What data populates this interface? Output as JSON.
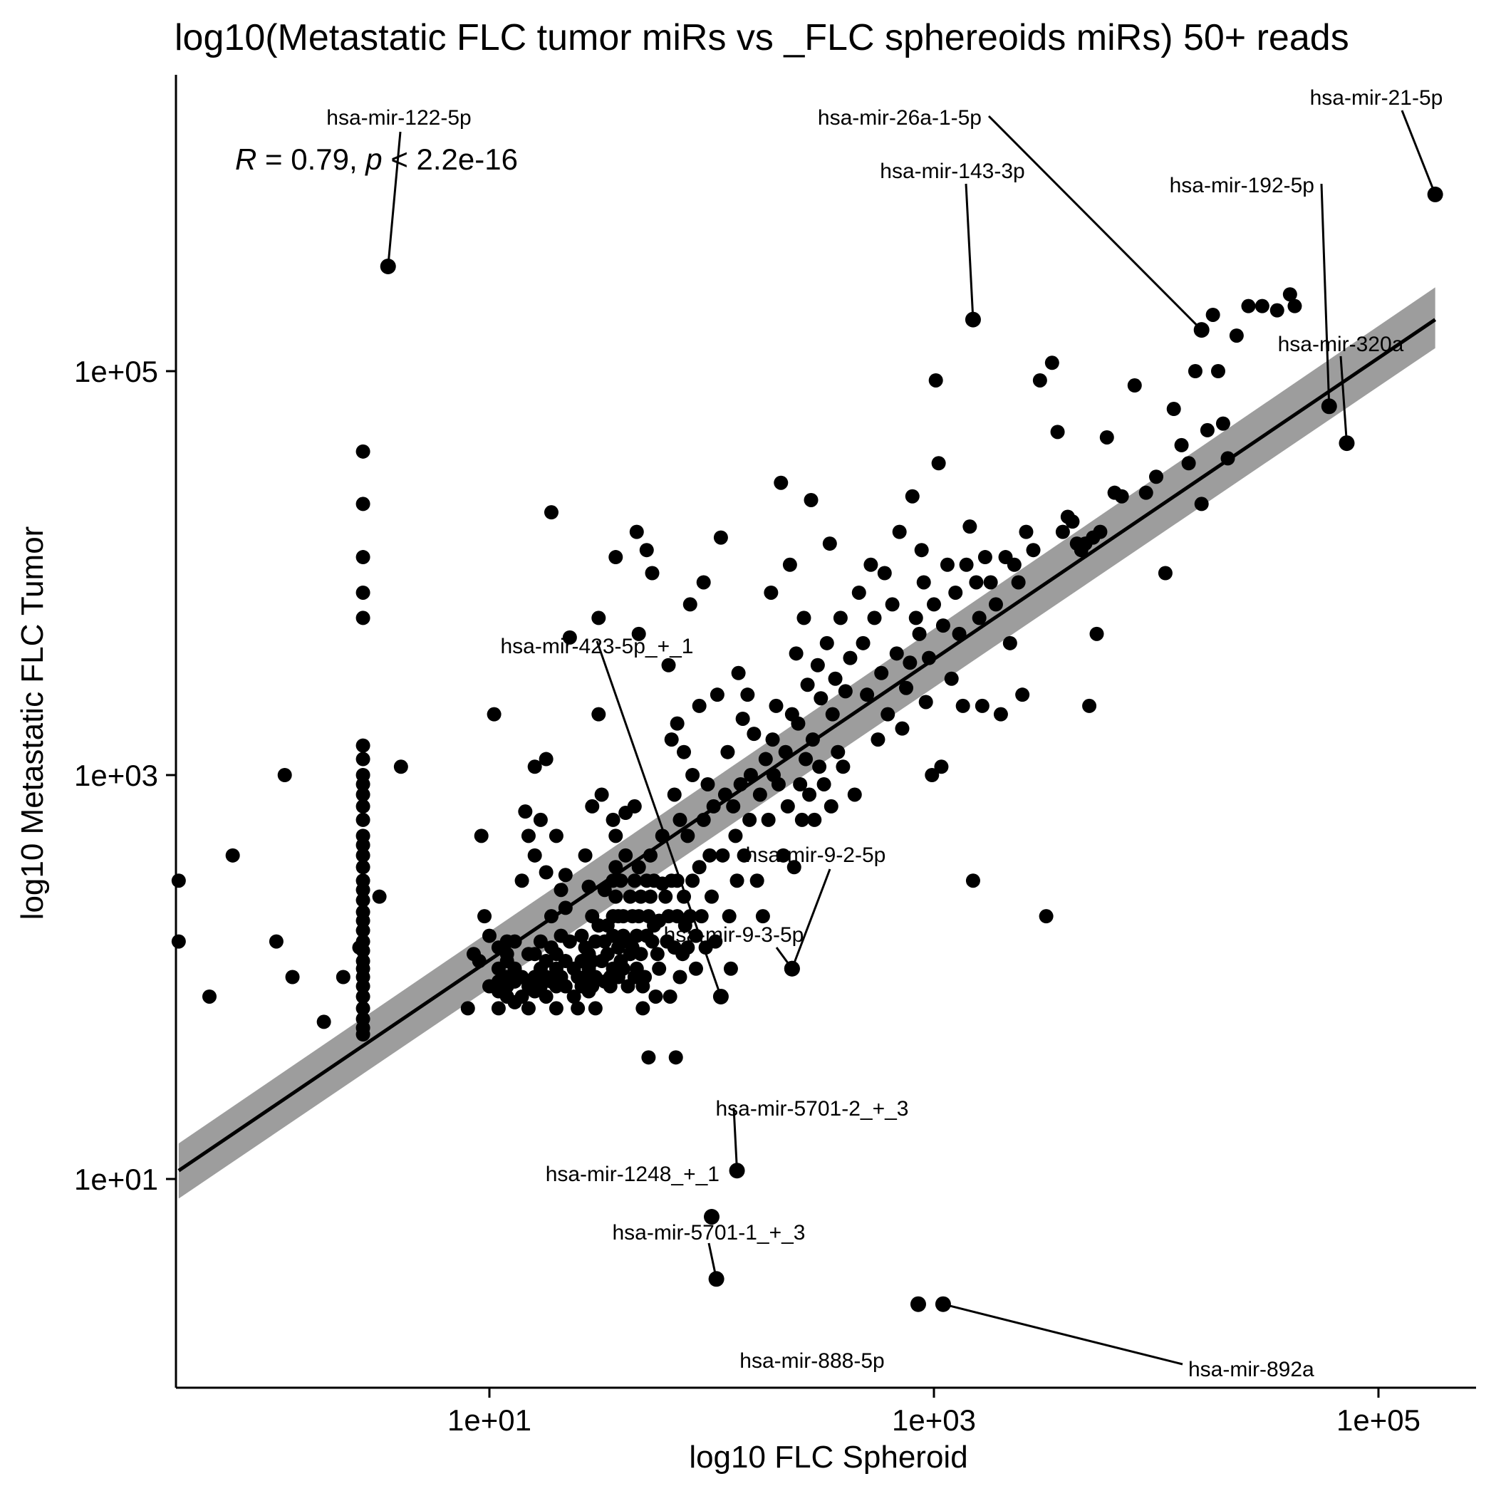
{
  "chart_data": {
    "type": "scatter",
    "title": "log10(Metastatic FLC tumor miRs vs _FLC sphereoids miRs) 50+ reads",
    "xlabel": "log10 FLC Spheroid",
    "ylabel": "log10 Metastatic FLC Tumor",
    "x_scale": "log10",
    "y_scale": "log10",
    "xlim": [
      0.2,
      300000
    ],
    "ylim": [
      2.2,
      1500000
    ],
    "x_ticks": [
      {
        "value": 10,
        "label": "1e+01"
      },
      {
        "value": 1000,
        "label": "1e+03"
      },
      {
        "value": 100000,
        "label": "1e+05"
      }
    ],
    "y_ticks": [
      {
        "value": 10,
        "label": "1e+01"
      },
      {
        "value": 1000,
        "label": "1e+03"
      },
      {
        "value": 100000,
        "label": "1e+05"
      }
    ],
    "grid": false,
    "stat_annotation": {
      "r_symbol": "R",
      "r_text": " = 0.79, ",
      "p_symbol": "p",
      "p_text": " < 2.2e-16"
    },
    "fit": {
      "type": "linear regression (log-log) with confidence band",
      "x_start": 0.4,
      "y_start": 11,
      "x_end": 180000,
      "y_end": 180000,
      "band_start": [
        8,
        15
      ],
      "band_end": [
        130000,
        260000
      ]
    },
    "labeled_points": [
      {
        "label": "hsa-mir-122-5p",
        "x": 3.5,
        "y": 330000
      },
      {
        "label": "hsa-mir-26a-1-5p",
        "x": 16000,
        "y": 160000
      },
      {
        "label": "hsa-mir-21-5p",
        "x": 180000,
        "y": 750000
      },
      {
        "label": "hsa-mir-143-3p",
        "x": 1500,
        "y": 180000
      },
      {
        "label": "hsa-mir-192-5p",
        "x": 60000,
        "y": 67000
      },
      {
        "label": "hsa-mir-320a",
        "x": 72000,
        "y": 44000
      },
      {
        "label": "hsa-mir-423-5p_+_1",
        "x": 110,
        "y": 80
      },
      {
        "label": "hsa-mir-9-2-5p",
        "x": 230,
        "y": 110
      },
      {
        "label": "hsa-mir-9-3-5p",
        "x": 230,
        "y": 110
      },
      {
        "label": "hsa-mir-5701-2_+_3",
        "x": 130,
        "y": 11
      },
      {
        "label": "hsa-mir-1248_+_1",
        "x": 100,
        "y": 6.5
      },
      {
        "label": "hsa-mir-5701-1_+_3",
        "x": 105,
        "y": 3.2
      },
      {
        "label": "hsa-mir-888-5p",
        "x": 850,
        "y": 2.4
      },
      {
        "label": "hsa-mir-892a",
        "x": 1100,
        "y": 2.4
      }
    ],
    "points": [
      [
        2.7,
        1000
      ],
      [
        2.7,
        1200
      ],
      [
        2.7,
        1400
      ],
      [
        2.7,
        6000
      ],
      [
        2.7,
        8000
      ],
      [
        2.7,
        12000
      ],
      [
        2.7,
        22000
      ],
      [
        2.7,
        40000
      ],
      [
        2.7,
        900
      ],
      [
        2.7,
        800
      ],
      [
        2.7,
        700
      ],
      [
        2.7,
        600
      ],
      [
        2.7,
        500
      ],
      [
        2.7,
        450
      ],
      [
        2.7,
        400
      ],
      [
        2.7,
        350
      ],
      [
        2.7,
        300
      ],
      [
        2.7,
        270
      ],
      [
        2.7,
        240
      ],
      [
        2.7,
        210
      ],
      [
        2.7,
        190
      ],
      [
        2.7,
        170
      ],
      [
        2.7,
        150
      ],
      [
        2.7,
        135
      ],
      [
        2.7,
        120
      ],
      [
        2.7,
        110
      ],
      [
        2.7,
        100
      ],
      [
        2.7,
        90
      ],
      [
        2.7,
        80
      ],
      [
        2.7,
        70
      ],
      [
        2.7,
        62
      ],
      [
        2.7,
        56
      ],
      [
        2.7,
        52
      ],
      [
        0.4,
        300
      ],
      [
        0.4,
        150
      ],
      [
        0.55,
        80
      ],
      [
        0.7,
        400
      ],
      [
        1.1,
        150
      ],
      [
        1.2,
        1000
      ],
      [
        1.3,
        100
      ],
      [
        1.8,
        60
      ],
      [
        2.2,
        100
      ],
      [
        2.6,
        140
      ],
      [
        3.2,
        250
      ],
      [
        4.0,
        1100
      ],
      [
        8,
        70
      ],
      [
        8.5,
        130
      ],
      [
        9,
        120
      ],
      [
        9.2,
        500
      ],
      [
        9.5,
        200
      ],
      [
        10,
        160
      ],
      [
        10,
        90
      ],
      [
        10.5,
        2000
      ],
      [
        11,
        140
      ],
      [
        11,
        110
      ],
      [
        11,
        95
      ],
      [
        11,
        85
      ],
      [
        11,
        70
      ],
      [
        12,
        150
      ],
      [
        12,
        130
      ],
      [
        12,
        120
      ],
      [
        12,
        100
      ],
      [
        12,
        90
      ],
      [
        12,
        80
      ],
      [
        13,
        150
      ],
      [
        13,
        110
      ],
      [
        13,
        95
      ],
      [
        13,
        75
      ],
      [
        14,
        300
      ],
      [
        14,
        100
      ],
      [
        14,
        80
      ],
      [
        14.5,
        660
      ],
      [
        15,
        500
      ],
      [
        15,
        130
      ],
      [
        15,
        90
      ],
      [
        15,
        70
      ],
      [
        16,
        1100
      ],
      [
        16,
        400
      ],
      [
        16,
        130
      ],
      [
        16,
        100
      ],
      [
        16,
        85
      ],
      [
        17,
        600
      ],
      [
        17,
        150
      ],
      [
        17,
        110
      ],
      [
        17,
        90
      ],
      [
        18,
        1200
      ],
      [
        18,
        330
      ],
      [
        18,
        120
      ],
      [
        18,
        100
      ],
      [
        18,
        80
      ],
      [
        19,
        20000
      ],
      [
        19,
        200
      ],
      [
        19,
        140
      ],
      [
        19,
        95
      ],
      [
        20,
        500
      ],
      [
        20,
        130
      ],
      [
        20,
        110
      ],
      [
        20,
        90
      ],
      [
        20,
        70
      ],
      [
        21,
        270
      ],
      [
        21,
        160
      ],
      [
        21,
        100
      ],
      [
        22,
        320
      ],
      [
        22,
        220
      ],
      [
        22,
        120
      ],
      [
        22,
        90
      ],
      [
        23,
        4800
      ],
      [
        23,
        150
      ],
      [
        24,
        110
      ],
      [
        24,
        80
      ],
      [
        25,
        100
      ],
      [
        25,
        70
      ],
      [
        26,
        160
      ],
      [
        26,
        120
      ],
      [
        26,
        90
      ],
      [
        27,
        400
      ],
      [
        27,
        140
      ],
      [
        27,
        100
      ],
      [
        28,
        280
      ],
      [
        28,
        130
      ],
      [
        28,
        110
      ],
      [
        28,
        85
      ],
      [
        29,
        700
      ],
      [
        29,
        200
      ],
      [
        29,
        120
      ],
      [
        29,
        90
      ],
      [
        30,
        150
      ],
      [
        30,
        100
      ],
      [
        30,
        70
      ],
      [
        31,
        6000
      ],
      [
        31,
        2000
      ],
      [
        31,
        180
      ],
      [
        32,
        800
      ],
      [
        32,
        120
      ],
      [
        33,
        270
      ],
      [
        33,
        150
      ],
      [
        33,
        95
      ],
      [
        34,
        180
      ],
      [
        34,
        130
      ],
      [
        35,
        100
      ],
      [
        35,
        90
      ],
      [
        36,
        600
      ],
      [
        36,
        300
      ],
      [
        36,
        200
      ],
      [
        36,
        160
      ],
      [
        36,
        110
      ],
      [
        37,
        12000
      ],
      [
        37,
        500
      ],
      [
        37,
        350
      ],
      [
        37,
        250
      ],
      [
        38,
        200
      ],
      [
        38,
        140
      ],
      [
        38,
        100
      ],
      [
        39,
        300
      ],
      [
        39,
        120
      ],
      [
        40,
        200
      ],
      [
        40,
        160
      ],
      [
        40,
        110
      ],
      [
        41,
        650
      ],
      [
        41,
        400
      ],
      [
        42,
        150
      ],
      [
        42,
        90
      ],
      [
        43,
        250
      ],
      [
        43,
        130
      ],
      [
        44,
        200
      ],
      [
        44,
        140
      ],
      [
        45,
        700
      ],
      [
        45,
        300
      ],
      [
        45,
        100
      ],
      [
        46,
        16000
      ],
      [
        46,
        160
      ],
      [
        46,
        110
      ],
      [
        47,
        5000
      ],
      [
        47,
        350
      ],
      [
        47,
        200
      ],
      [
        48,
        250
      ],
      [
        48,
        130
      ],
      [
        49,
        90
      ],
      [
        49,
        70
      ],
      [
        50,
        100
      ],
      [
        51,
        13000
      ],
      [
        51,
        300
      ],
      [
        51,
        160
      ],
      [
        52,
        40
      ],
      [
        52,
        200
      ],
      [
        53,
        400
      ],
      [
        53,
        250
      ],
      [
        54,
        10000
      ],
      [
        54,
        150
      ],
      [
        55,
        300
      ],
      [
        55,
        180
      ],
      [
        56,
        80
      ],
      [
        57,
        130
      ],
      [
        58,
        190
      ],
      [
        58,
        110
      ],
      [
        60,
        500
      ],
      [
        60,
        290
      ],
      [
        62,
        250
      ],
      [
        63,
        150
      ],
      [
        64,
        3500
      ],
      [
        64,
        200
      ],
      [
        65,
        80
      ],
      [
        66,
        1500
      ],
      [
        66,
        300
      ],
      [
        68,
        800
      ],
      [
        68,
        140
      ],
      [
        69,
        40
      ],
      [
        70,
        1800
      ],
      [
        70,
        300
      ],
      [
        70,
        200
      ],
      [
        72,
        600
      ],
      [
        72,
        100
      ],
      [
        74,
        130
      ],
      [
        75,
        1300
      ],
      [
        75,
        250
      ],
      [
        76,
        180
      ],
      [
        78,
        500
      ],
      [
        78,
        140
      ],
      [
        80,
        7000
      ],
      [
        80,
        200
      ],
      [
        82,
        1000
      ],
      [
        82,
        300
      ],
      [
        85,
        110
      ],
      [
        85,
        160
      ],
      [
        88,
        2200
      ],
      [
        88,
        350
      ],
      [
        90,
        200
      ],
      [
        92,
        9000
      ],
      [
        92,
        600
      ],
      [
        94,
        140
      ],
      [
        96,
        900
      ],
      [
        98,
        400
      ],
      [
        100,
        250
      ],
      [
        102,
        700
      ],
      [
        104,
        150
      ],
      [
        106,
        2500
      ],
      [
        110,
        80
      ],
      [
        110,
        15000
      ],
      [
        112,
        400
      ],
      [
        115,
        800
      ],
      [
        118,
        1300
      ],
      [
        120,
        200
      ],
      [
        122,
        110
      ],
      [
        125,
        700
      ],
      [
        128,
        500
      ],
      [
        130,
        300
      ],
      [
        132,
        3200
      ],
      [
        135,
        900
      ],
      [
        138,
        1900
      ],
      [
        140,
        400
      ],
      [
        145,
        2500
      ],
      [
        148,
        600
      ],
      [
        150,
        1000
      ],
      [
        155,
        1600
      ],
      [
        160,
        300
      ],
      [
        165,
        800
      ],
      [
        170,
        200
      ],
      [
        175,
        1200
      ],
      [
        180,
        600
      ],
      [
        185,
        8000
      ],
      [
        188,
        1500
      ],
      [
        190,
        1000
      ],
      [
        195,
        2200
      ],
      [
        200,
        900
      ],
      [
        205,
        28000
      ],
      [
        210,
        400
      ],
      [
        215,
        1300
      ],
      [
        220,
        700
      ],
      [
        225,
        11000
      ],
      [
        230,
        2000
      ],
      [
        235,
        350
      ],
      [
        240,
        4000
      ],
      [
        245,
        1800
      ],
      [
        250,
        900
      ],
      [
        255,
        600
      ],
      [
        260,
        6000
      ],
      [
        265,
        1200
      ],
      [
        270,
        2800
      ],
      [
        275,
        800
      ],
      [
        280,
        23000
      ],
      [
        285,
        1500
      ],
      [
        290,
        600
      ],
      [
        300,
        3500
      ],
      [
        305,
        1100
      ],
      [
        310,
        2400
      ],
      [
        320,
        900
      ],
      [
        330,
        4500
      ],
      [
        340,
        14000
      ],
      [
        345,
        700
      ],
      [
        350,
        2000
      ],
      [
        360,
        3000
      ],
      [
        370,
        1300
      ],
      [
        380,
        6000
      ],
      [
        390,
        1100
      ],
      [
        400,
        2600
      ],
      [
        420,
        3800
      ],
      [
        440,
        800
      ],
      [
        460,
        8000
      ],
      [
        480,
        4500
      ],
      [
        500,
        2500
      ],
      [
        520,
        11000
      ],
      [
        540,
        6000
      ],
      [
        560,
        1500
      ],
      [
        580,
        3200
      ],
      [
        600,
        10000
      ],
      [
        620,
        2000
      ],
      [
        650,
        7000
      ],
      [
        680,
        4000
      ],
      [
        700,
        16000
      ],
      [
        720,
        1700
      ],
      [
        750,
        2700
      ],
      [
        780,
        3600
      ],
      [
        800,
        24000
      ],
      [
        830,
        6000
      ],
      [
        860,
        5000
      ],
      [
        880,
        13000
      ],
      [
        900,
        9000
      ],
      [
        920,
        2300
      ],
      [
        950,
        3800
      ],
      [
        980,
        1000
      ],
      [
        1000,
        7000
      ],
      [
        1020,
        90000
      ],
      [
        1050,
        35000
      ],
      [
        1080,
        1100
      ],
      [
        1100,
        5500
      ],
      [
        1150,
        11000
      ],
      [
        1200,
        3000
      ],
      [
        1250,
        8000
      ],
      [
        1300,
        5000
      ],
      [
        1350,
        2200
      ],
      [
        1400,
        11000
      ],
      [
        1450,
        17000
      ],
      [
        1500,
        300
      ],
      [
        1550,
        9000
      ],
      [
        1600,
        6000
      ],
      [
        1650,
        2200
      ],
      [
        1700,
        12000
      ],
      [
        1800,
        9000
      ],
      [
        1900,
        7000
      ],
      [
        2000,
        2000
      ],
      [
        2100,
        12000
      ],
      [
        2200,
        4500
      ],
      [
        2300,
        11000
      ],
      [
        2400,
        9000
      ],
      [
        2500,
        2500
      ],
      [
        2600,
        16000
      ],
      [
        2800,
        13000
      ],
      [
        3000,
        90000
      ],
      [
        3200,
        200
      ],
      [
        3400,
        110000
      ],
      [
        3600,
        50000
      ],
      [
        3800,
        16000
      ],
      [
        4000,
        19000
      ],
      [
        4200,
        18000
      ],
      [
        4400,
        14000
      ],
      [
        4600,
        13000
      ],
      [
        4800,
        14000
      ],
      [
        5000,
        2200
      ],
      [
        5200,
        15000
      ],
      [
        5400,
        5000
      ],
      [
        5600,
        16000
      ],
      [
        6000,
        47000
      ],
      [
        6500,
        25000
      ],
      [
        7000,
        24000
      ],
      [
        8000,
        85000
      ],
      [
        9000,
        25000
      ],
      [
        10000,
        30000
      ],
      [
        11000,
        10000
      ],
      [
        12000,
        65000
      ],
      [
        13000,
        43000
      ],
      [
        14000,
        35000
      ],
      [
        15000,
        100000
      ],
      [
        16000,
        22000
      ],
      [
        17000,
        51000
      ],
      [
        18000,
        190000
      ],
      [
        19000,
        100000
      ],
      [
        20000,
        55000
      ],
      [
        21000,
        37000
      ],
      [
        23000,
        150000
      ],
      [
        26000,
        210000
      ],
      [
        30000,
        210000
      ],
      [
        35000,
        200000
      ],
      [
        40000,
        240000
      ],
      [
        42000,
        210000
      ]
    ]
  }
}
